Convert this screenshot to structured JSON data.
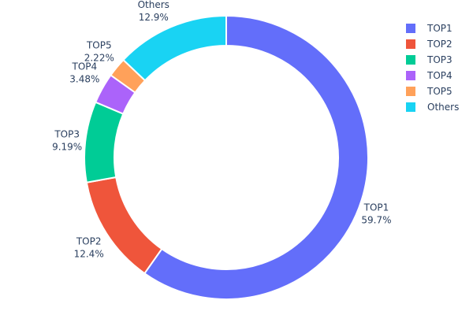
{
  "chart_data": {
    "type": "pie",
    "hole": true,
    "direction": "clockwise",
    "legend_position": "top-right",
    "categories": [
      "TOP1",
      "TOP2",
      "TOP3",
      "TOP4",
      "TOP5",
      "Others"
    ],
    "values": [
      59.7,
      12.4,
      9.19,
      3.48,
      2.22,
      12.9
    ],
    "value_labels": [
      "59.7%",
      "12.4%",
      "9.19%",
      "3.48%",
      "2.22%",
      "12.9%"
    ],
    "colors": [
      "#636efa",
      "#ef553b",
      "#00cc96",
      "#ab63fa",
      "#ffa15a",
      "#19d3f3"
    ]
  }
}
